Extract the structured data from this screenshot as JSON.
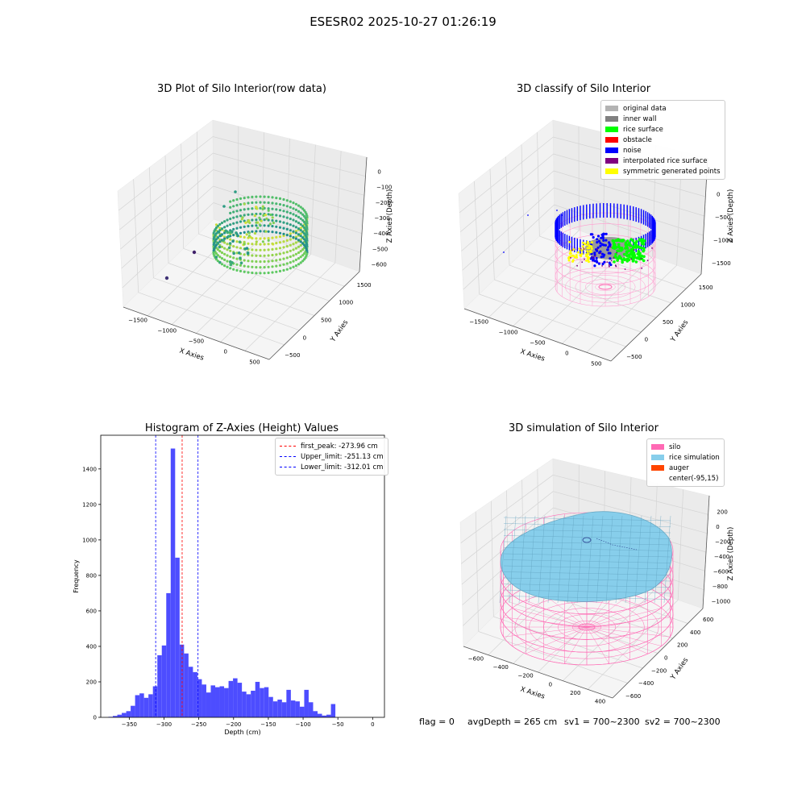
{
  "suptitle": "ESESR02 2025-10-27 01:26:19",
  "status": {
    "flag": "flag = 0",
    "avg_depth": "avgDepth = 265 cm",
    "sv1": "sv1 = 700~2300",
    "sv2": "sv2 = 700~2300"
  },
  "colors": {
    "original_data": "#b3b3b3",
    "inner_wall": "#808080",
    "rice_surface": "#00ff00",
    "obstacle": "#ff0000",
    "noise": "#0000ff",
    "interpolated_rice_surface": "#800080",
    "symmetric_generated_points": "#ffff00",
    "silo": "#ff69b4",
    "rice_simulation": "#87ceeb",
    "auger": "#ff4500",
    "hist_bar": "#4d4dff",
    "first_peak_line": "#ff0000",
    "limit_line": "#0000ff"
  },
  "chart_data": [
    {
      "type": "scatter",
      "projection": "3d",
      "title": "3D Plot of Silo Interior(row data)",
      "xlabel": "X Axies",
      "ylabel": "Y Axies",
      "zlabel": "Z Axies (Depth)",
      "x_ticks": [
        "−1500",
        "−1000",
        "−500",
        "0",
        "500"
      ],
      "y_ticks": [
        "−500",
        "0",
        "500",
        "1000",
        "1500"
      ],
      "z_ticks": [
        "0",
        "−100",
        "−200",
        "−300",
        "−400",
        "−500",
        "−600"
      ],
      "colormap": "viridis",
      "grid": true
    },
    {
      "type": "scatter",
      "projection": "3d",
      "title": "3D classify of Silo Interior",
      "xlabel": "X Axies",
      "ylabel": "Y Axies",
      "zlabel": "Z Axies (Depth)",
      "x_ticks": [
        "−1500",
        "−1000",
        "−500",
        "0",
        "500"
      ],
      "y_ticks": [
        "−500",
        "0",
        "500",
        "1000",
        "1500"
      ],
      "z_ticks": [
        "0",
        "−500",
        "−1000",
        "−1500"
      ],
      "legend": [
        "original data",
        "inner wall",
        "rice surface",
        "obstacle",
        "noise",
        "interpolated rice surface",
        "symmetric generated points"
      ],
      "legend_position": "top-right",
      "grid": true
    },
    {
      "type": "bar",
      "title": "Histogram of Z-Axies (Height) Values",
      "xlabel": "Depth (cm)",
      "ylabel": "Frequency",
      "xlim": [
        -391,
        17
      ],
      "ylim": [
        0,
        1590
      ],
      "x_ticks": [
        -350,
        -300,
        -250,
        -200,
        -150,
        -100,
        -50,
        0
      ],
      "y_ticks": [
        0,
        200,
        400,
        600,
        800,
        1000,
        1200,
        1400
      ],
      "bin_start": -380,
      "bin_width": 6.4,
      "values": [
        3,
        8,
        15,
        25,
        35,
        65,
        125,
        135,
        110,
        130,
        175,
        350,
        405,
        700,
        1515,
        900,
        410,
        360,
        285,
        255,
        215,
        185,
        140,
        180,
        170,
        175,
        165,
        205,
        220,
        195,
        145,
        130,
        150,
        200,
        165,
        170,
        115,
        90,
        100,
        85,
        155,
        95,
        90,
        60,
        155,
        85,
        35,
        20,
        10,
        15,
        75
      ],
      "lines": [
        {
          "label": "first_peak: -273.96 cm",
          "x": -273.96,
          "color": "#ff0000"
        },
        {
          "label": "Upper_limit: -251.13 cm",
          "x": -251.13,
          "color": "#0000ff"
        },
        {
          "label": "Lower_limit: -312.01 cm",
          "x": -312.01,
          "color": "#0000ff"
        }
      ],
      "legend_position": "top-right",
      "grid": false
    },
    {
      "type": "surface",
      "projection": "3d",
      "title": "3D simulation of Silo Interior",
      "xlabel": "X Axies",
      "ylabel": "Y Axies",
      "zlabel": "Z Axies (Depth)",
      "x_ticks": [
        "−600",
        "−400",
        "−200",
        "0",
        "200",
        "400"
      ],
      "y_ticks": [
        "−600",
        "−400",
        "−200",
        "0",
        "200",
        "400",
        "600"
      ],
      "z_ticks": [
        "200",
        "0",
        "−200",
        "−400",
        "−600",
        "−800",
        "−1000"
      ],
      "legend": [
        "silo",
        "rice simulation",
        "auger",
        "center(-95,15)"
      ],
      "legend_position": "top-right",
      "grid": true
    }
  ]
}
